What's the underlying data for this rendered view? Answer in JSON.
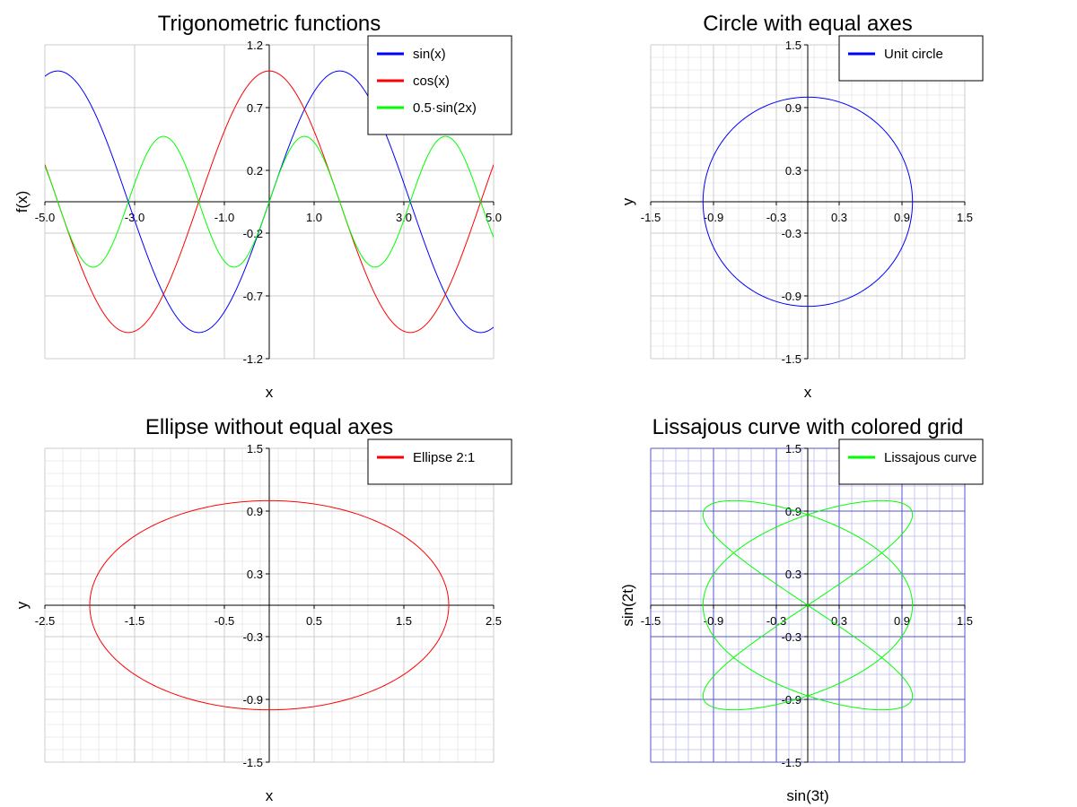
{
  "chart_data": [
    {
      "type": "line",
      "title": "Trigonometric functions",
      "xlabel": "x",
      "ylabel": "f(x)",
      "xlim": [
        -5,
        5
      ],
      "ylim": [
        -1.2,
        1.2
      ],
      "xticks": [
        "-5.0",
        "-3.0",
        "-1.0",
        "1.0",
        "3.0",
        "5.0"
      ],
      "yticks": [
        "1.2",
        "0.7",
        "0.2",
        "-0.2",
        "-0.7",
        "-1.2"
      ],
      "grid": true,
      "legend_position": "top-right",
      "series": [
        {
          "name": "sin(x)",
          "color": "#0000ff",
          "x_range": [
            -5,
            5
          ],
          "samples": [
            {
              "x": -5,
              "y": 0.959
            },
            {
              "x": -3.5,
              "y": 0.351
            },
            {
              "x": -1.57,
              "y": -1.0
            },
            {
              "x": 0,
              "y": 0
            },
            {
              "x": 1.57,
              "y": 1.0
            },
            {
              "x": 3.5,
              "y": -0.351
            },
            {
              "x": 5,
              "y": -0.959
            }
          ]
        },
        {
          "name": "cos(x)",
          "color": "#ff0000",
          "x_range": [
            -5,
            5
          ],
          "samples": [
            {
              "x": -5,
              "y": 0.284
            },
            {
              "x": -3.14,
              "y": -1.0
            },
            {
              "x": 0,
              "y": 1.0
            },
            {
              "x": 3.14,
              "y": -1.0
            },
            {
              "x": 5,
              "y": 0.284
            }
          ]
        },
        {
          "name": "0.5·sin(2x)",
          "color": "#00ff00",
          "x_range": [
            -5,
            5
          ],
          "samples": [
            {
              "x": -5,
              "y": 0.272
            },
            {
              "x": -3.93,
              "y": -0.5
            },
            {
              "x": -2.36,
              "y": 0.5
            },
            {
              "x": -0.79,
              "y": -0.5
            },
            {
              "x": 0.79,
              "y": 0.5
            },
            {
              "x": 2.36,
              "y": -0.5
            },
            {
              "x": 3.93,
              "y": 0.5
            },
            {
              "x": 5,
              "y": -0.272
            }
          ]
        }
      ]
    },
    {
      "type": "line",
      "title": "Circle with equal axes",
      "xlabel": "x",
      "ylabel": "y",
      "xlim": [
        -1.5,
        1.5
      ],
      "ylim": [
        -1.5,
        1.5
      ],
      "xticks": [
        "-1.5",
        "-0.9",
        "-0.3",
        "0.3",
        "0.9",
        "1.5"
      ],
      "yticks": [
        "1.5",
        "0.9",
        "0.3",
        "-0.3",
        "-0.9",
        "-1.5"
      ],
      "grid": true,
      "minor_grid": true,
      "legend_position": "top-right",
      "series": [
        {
          "name": "Unit circle",
          "color": "#0000ff",
          "parametric": "circle",
          "radius": 1.0
        }
      ]
    },
    {
      "type": "line",
      "title": "Ellipse without equal axes",
      "xlabel": "x",
      "ylabel": "y",
      "xlim": [
        -2.5,
        2.5
      ],
      "ylim": [
        -1.5,
        1.5
      ],
      "xticks": [
        "-2.5",
        "-1.5",
        "-0.5",
        "0.5",
        "1.5",
        "2.5"
      ],
      "yticks": [
        "1.5",
        "0.9",
        "0.3",
        "-0.3",
        "-0.9",
        "-1.5"
      ],
      "grid": true,
      "minor_grid": true,
      "legend_position": "top-right",
      "series": [
        {
          "name": "Ellipse 2:1",
          "color": "#ff0000",
          "parametric": "ellipse",
          "a": 2.0,
          "b": 1.0
        }
      ]
    },
    {
      "type": "line",
      "title": "Lissajous curve with colored grid",
      "xlabel": "sin(3t)",
      "ylabel": "sin(2t)",
      "xlim": [
        -1.5,
        1.5
      ],
      "ylim": [
        -1.5,
        1.5
      ],
      "xticks": [
        "-1.5",
        "-0.9",
        "-0.3",
        "0.3",
        "0.9",
        "1.5"
      ],
      "yticks": [
        "1.5",
        "0.9",
        "0.3",
        "-0.3",
        "-0.9",
        "-1.5"
      ],
      "grid": true,
      "minor_grid": true,
      "grid_color": "#5555cc",
      "minor_grid_color": "#bbbbee",
      "legend_position": "top-right",
      "series": [
        {
          "name": "Lissajous curve",
          "color": "#00ff00",
          "parametric": "lissajous",
          "fx": 3,
          "fy": 2
        }
      ]
    }
  ]
}
